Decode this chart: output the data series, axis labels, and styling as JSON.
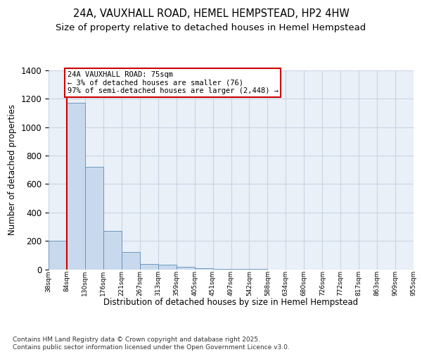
{
  "title": "24A, VAUXHALL ROAD, HEMEL HEMPSTEAD, HP2 4HW",
  "subtitle": "Size of property relative to detached houses in Hemel Hempstead",
  "xlabel": "Distribution of detached houses by size in Hemel Hempstead",
  "ylabel": "Number of detached properties",
  "bins": [
    "38sqm",
    "84sqm",
    "130sqm",
    "176sqm",
    "221sqm",
    "267sqm",
    "313sqm",
    "359sqm",
    "405sqm",
    "451sqm",
    "497sqm",
    "542sqm",
    "588sqm",
    "634sqm",
    "680sqm",
    "726sqm",
    "772sqm",
    "817sqm",
    "863sqm",
    "909sqm",
    "955sqm"
  ],
  "bar_heights": [
    200,
    1170,
    720,
    270,
    120,
    35,
    30,
    18,
    8,
    4,
    4,
    2,
    0,
    0,
    0,
    0,
    0,
    0,
    0,
    0
  ],
  "bar_color": "#c9d9ed",
  "bar_edge_color": "#5b8db8",
  "grid_color": "#c8d4e3",
  "bg_color": "#eaf0f8",
  "property_line_color": "#cc0000",
  "annotation_text": "24A VAUXHALL ROAD: 75sqm\n← 3% of detached houses are smaller (76)\n97% of semi-detached houses are larger (2,448) →",
  "annotation_box_color": "#cc0000",
  "ylim": [
    0,
    1400
  ],
  "footer": "Contains HM Land Registry data © Crown copyright and database right 2025.\nContains public sector information licensed under the Open Government Licence v3.0.",
  "title_fontsize": 10.5,
  "subtitle_fontsize": 9.5,
  "axis_label_fontsize": 8.5,
  "tick_fontsize": 6.5,
  "annotation_fontsize": 7.5,
  "footer_fontsize": 6.5
}
